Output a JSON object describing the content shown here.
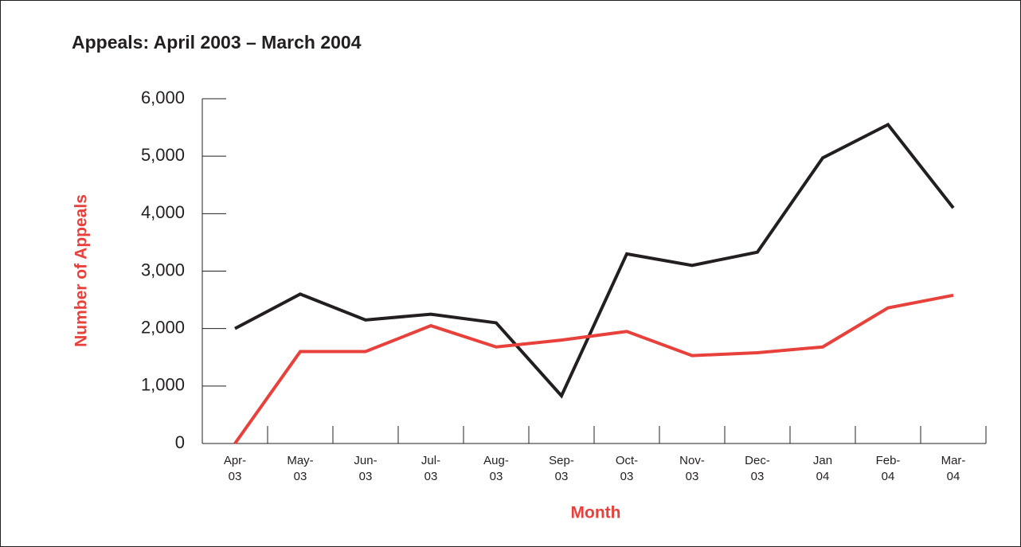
{
  "chart_data": {
    "type": "line",
    "title": "Appeals: April 2003 – March 2004",
    "x_label": "Month",
    "y_label": "Number of Appeals",
    "categories": [
      "Apr-03",
      "May-03",
      "Jun-03",
      "Jul-03",
      "Aug-03",
      "Sep-03",
      "Oct-03",
      "Nov-03",
      "Dec-03",
      "Jan 04",
      "Feb-04",
      "Mar-04"
    ],
    "series": [
      {
        "color": "#231f20",
        "values": [
          2000,
          2600,
          2150,
          2250,
          2100,
          830,
          3300,
          3100,
          3330,
          4970,
          5550,
          4100
        ]
      },
      {
        "color": "#e8413c",
        "values": [
          0,
          1600,
          1600,
          2050,
          1680,
          1800,
          1950,
          1530,
          1580,
          1680,
          2360,
          2580
        ]
      }
    ],
    "ylim": [
      0,
      6000
    ],
    "yticks": [
      0,
      {
        "value": 1000,
        "label": "1,000"
      },
      {
        "value": 2000,
        "label": "2,000"
      },
      {
        "value": 3000,
        "label": "3,000"
      },
      {
        "value": 4000,
        "label": "4,000"
      },
      {
        "value": 5000,
        "label": "5,000"
      },
      {
        "value": 6000,
        "label": "6,000"
      }
    ]
  }
}
